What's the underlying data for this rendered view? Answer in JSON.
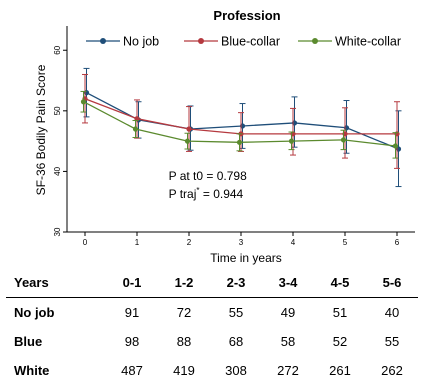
{
  "chart_data": {
    "type": "line",
    "title": "Profession",
    "xlabel": "Time in years",
    "ylabel": "SF-36 Bodily Pain Score",
    "x": [
      0,
      1,
      2,
      3,
      4,
      5,
      6
    ],
    "xticks": [
      "0",
      "1",
      "2",
      "3",
      "4",
      "5",
      "6"
    ],
    "ylim": [
      30,
      64
    ],
    "yticks": [
      "30",
      "40",
      "50",
      "60"
    ],
    "ytick_values": [
      30,
      40,
      50,
      60
    ],
    "legend_position": "top",
    "grid": false,
    "series": [
      {
        "name": "No job",
        "color": "#1f4e79",
        "values": [
          53.0,
          48.5,
          47.0,
          47.5,
          48.0,
          47.2,
          43.7
        ],
        "err_low": [
          49.0,
          45.5,
          43.5,
          43.8,
          44.0,
          43.0,
          37.5
        ],
        "err_high": [
          57.0,
          51.5,
          50.8,
          51.2,
          52.3,
          51.7,
          50.0
        ]
      },
      {
        "name": "Blue-collar",
        "color": "#b5393f",
        "values": [
          52.0,
          48.7,
          47.0,
          46.2,
          46.2,
          46.2,
          46.2
        ],
        "err_low": [
          48.0,
          45.5,
          43.3,
          43.3,
          42.7,
          42.2,
          40.5
        ],
        "err_high": [
          56.0,
          51.8,
          50.7,
          49.7,
          50.4,
          50.5,
          51.5
        ]
      },
      {
        "name": "White-collar",
        "color": "#5b8a2e",
        "values": [
          51.5,
          47.0,
          45.0,
          44.8,
          45.0,
          45.2,
          44.2
        ],
        "err_low": [
          49.8,
          45.6,
          43.7,
          43.4,
          43.6,
          43.6,
          42.2
        ],
        "err_high": [
          53.2,
          48.4,
          46.3,
          46.2,
          46.5,
          46.8,
          46.4
        ]
      }
    ],
    "annotations": [
      {
        "text": "P at t0 = 0.798",
        "x": 1.8,
        "y": 38.6
      },
      {
        "text": "P traj",
        "sup": "*",
        "suffix": " = 0.944",
        "x": 1.8,
        "y": 35.6
      }
    ]
  },
  "table": {
    "headers": [
      "Years",
      "0-1",
      "1-2",
      "2-3",
      "3-4",
      "4-5",
      "5-6"
    ],
    "rows": [
      {
        "label": "No job",
        "values": [
          "91",
          "72",
          "55",
          "49",
          "51",
          "40"
        ]
      },
      {
        "label": "Blue",
        "values": [
          "98",
          "88",
          "68",
          "58",
          "52",
          "55"
        ]
      },
      {
        "label": "White",
        "values": [
          "487",
          "419",
          "308",
          "272",
          "261",
          "262"
        ]
      }
    ]
  }
}
